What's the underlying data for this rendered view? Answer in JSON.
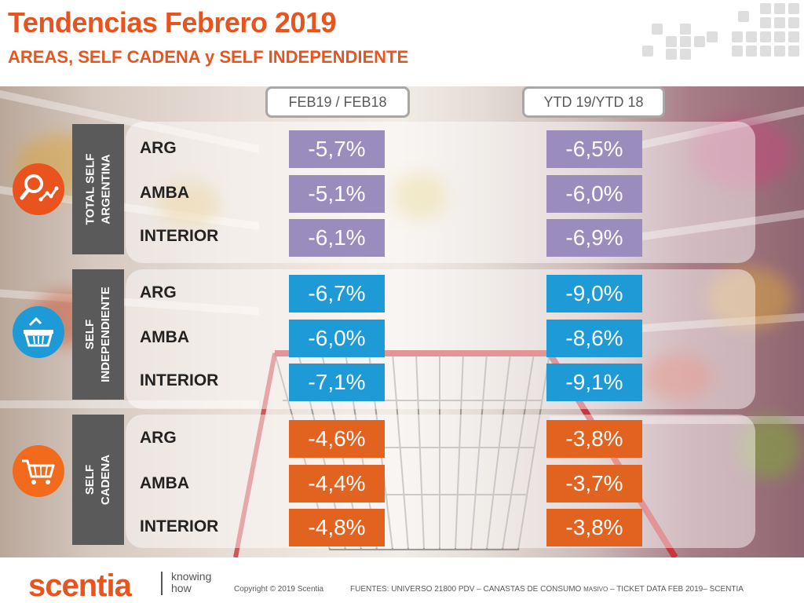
{
  "title": "Tendencias Febrero 2019",
  "subtitle": "AREAS, SELF CADENA y SELF INDEPENDIENTE",
  "columns": {
    "left": "FEB19 / FEB18",
    "right": "YTD 19/YTD 18"
  },
  "groups": [
    {
      "line1": "TOTAL SELF",
      "line2": "ARGENTINA",
      "icon": "trend-magnifier-icon",
      "icon_color": "#e8531e",
      "box_color": "#9a8cbc",
      "rows": [
        {
          "label": "ARG",
          "feb": "-5,7%",
          "ytd": "-6,5%"
        },
        {
          "label": "AMBA",
          "feb": "-5,1%",
          "ytd": "-6,0%"
        },
        {
          "label": "INTERIOR",
          "feb": "-6,1%",
          "ytd": "-6,9%"
        }
      ]
    },
    {
      "line1": "SELF",
      "line2": "INDEPENDIENTE",
      "icon": "shopping-basket-icon",
      "icon_color": "#1e9ad6",
      "box_color": "#1e9ad6",
      "rows": [
        {
          "label": "ARG",
          "feb": "-6,7%",
          "ytd": "-9,0%"
        },
        {
          "label": "AMBA",
          "feb": "-6,0%",
          "ytd": "-8,6%"
        },
        {
          "label": "INTERIOR",
          "feb": "-7,1%",
          "ytd": "-9,1%"
        }
      ]
    },
    {
      "line1": "SELF",
      "line2": "CADENA",
      "icon": "shopping-cart-icon",
      "icon_color": "#f26a1b",
      "box_color": "#e2621f",
      "rows": [
        {
          "label": "ARG",
          "feb": "-4,6%",
          "ytd": "-3,8%"
        },
        {
          "label": "AMBA",
          "feb": "-4,4%",
          "ytd": "-3,7%"
        },
        {
          "label": "INTERIOR",
          "feb": "-4,8%",
          "ytd": "-3,8%"
        }
      ]
    }
  ],
  "footer": {
    "brand": "scentia",
    "tagline_1": "knowing",
    "tagline_2": "how",
    "copyright": "Copyright © 2019 Scentia",
    "sources_a": "FUENTES: UNIVERSO 21800 PDV – CANASTAS DE CONSUMO",
    "sources_b": "MASIVO",
    "sources_c": "– TICKET DATA FEB 2019– SCENTIA"
  }
}
